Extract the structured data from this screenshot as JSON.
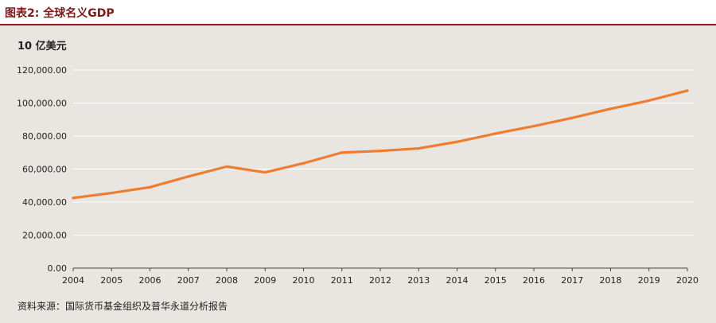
{
  "figure": {
    "title": "图表2:  全球名义GDP",
    "source": "资料来源：国际货币基金组织及普华永道分析报告"
  },
  "colors": {
    "title": "#7a1a1a",
    "rule": "#8b1a1a",
    "background": "#e9e6e1",
    "line": "#ee7d31",
    "grid": "#ffffff",
    "axis": "#444444"
  },
  "chart_data": {
    "type": "line",
    "title": "全球名义GDP",
    "unit_label": "10 亿美元",
    "xlabel": "",
    "ylabel": "10 亿美元",
    "ylim": [
      0,
      120000
    ],
    "y_ticks": [
      0,
      20000,
      40000,
      60000,
      80000,
      100000,
      120000
    ],
    "y_tick_labels": [
      "0.00",
      "20,000.00",
      "40,000.00",
      "60,000.00",
      "80,000.00",
      "100,000.00",
      "120,000.00"
    ],
    "x": [
      "2004",
      "2005",
      "2006",
      "2007",
      "2008",
      "2009",
      "2010",
      "2011",
      "2012",
      "2013",
      "2014",
      "2015",
      "2016",
      "2017",
      "2018",
      "2019",
      "2020"
    ],
    "series": [
      {
        "name": "全球名义GDP",
        "values": [
          42500,
          45500,
          49000,
          55500,
          61500,
          58000,
          63500,
          70000,
          71000,
          72500,
          76500,
          81500,
          86000,
          91000,
          96500,
          101500,
          107500
        ]
      }
    ],
    "grid": true,
    "legend": "none"
  }
}
